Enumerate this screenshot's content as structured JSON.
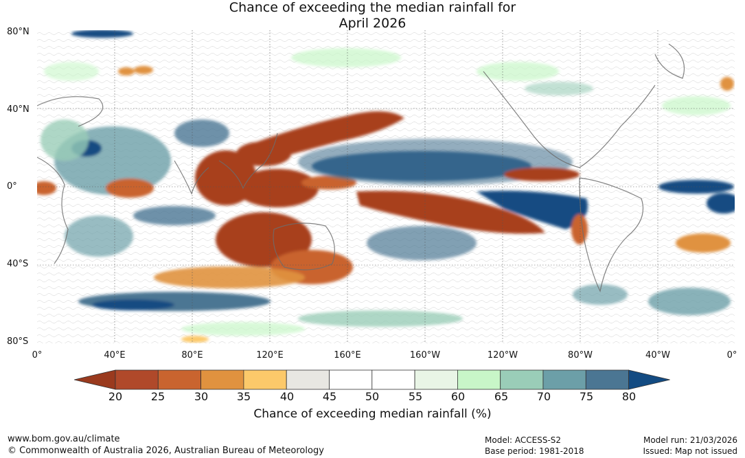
{
  "title_line1": "Chance of exceeding the median rainfall for",
  "title_line2": "April 2026",
  "lat_labels": [
    "80°N",
    "40°N",
    "0°",
    "40°S",
    "80°S"
  ],
  "lon_labels": [
    "0°",
    "40°E",
    "80°E",
    "120°E",
    "160°E",
    "160°W",
    "120°W",
    "80°W",
    "40°W",
    "0°"
  ],
  "legend": {
    "title": "Chance of exceeding median rainfall (%)",
    "ticks": [
      "20",
      "25",
      "30",
      "35",
      "40",
      "45",
      "50",
      "55",
      "60",
      "65",
      "70",
      "75",
      "80"
    ],
    "colors": [
      "#9a3a1e",
      "#b0492a",
      "#c9642f",
      "#e0923f",
      "#fcc96a",
      "#e8e7e2",
      "#ffffff",
      "#ffffff",
      "#e9f5e6",
      "#c8f6c8",
      "#9acdb8",
      "#6c9fa8",
      "#4b7693",
      "#134b82"
    ]
  },
  "regions": {
    "dry": "#a83f1f",
    "dry_mid": "#c9642f",
    "dry_light": "#e0923f",
    "dry_pale": "#fcc96a",
    "wet": "#134b82",
    "wet_mid": "#4b7693",
    "wet_teal": "#6c9fa8",
    "wet_light": "#9acdb8",
    "wet_pale": "#c8f6c8",
    "neutral": "#e8e7e2"
  },
  "footer": {
    "site": "www.bom.gov.au/climate",
    "copyright": "© Commonwealth of Australia 2026, Australian Bureau of Meteorology",
    "model": "Model: ACCESS-S2",
    "base_period": "Base period: 1981-2018",
    "model_run": "Model run: 21/03/2026",
    "issued": "Issued: Map not issued"
  }
}
